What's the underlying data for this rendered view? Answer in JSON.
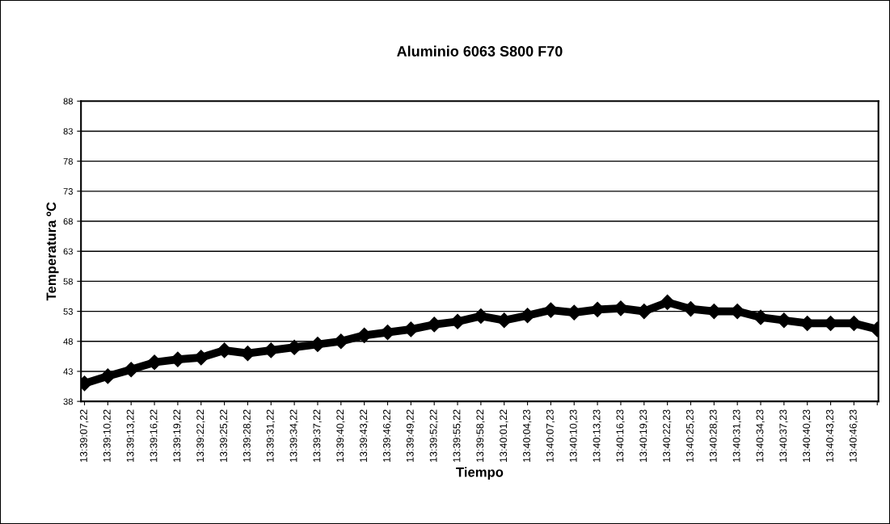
{
  "chart_data": {
    "type": "line",
    "title": "Aluminio 6063 S800 F70",
    "xlabel": "Tiempo",
    "ylabel": "Temperatura ºC",
    "categories": [
      "13:39:07,22",
      "13:39:10,22",
      "13:39:13,22",
      "13:39:16,22",
      "13:39:19,22",
      "13:39:22,22",
      "13:39:25,22",
      "13:39:28,22",
      "13:39:31,22",
      "13:39:34,22",
      "13:39:37,22",
      "13:39:40,22",
      "13:39:43,22",
      "13:39:46,22",
      "13:39:49,22",
      "13:39:52,22",
      "13:39:55,22",
      "13:39:58,22",
      "13:40:01,22",
      "13:40:04,23",
      "13:40:07,23",
      "13:40:10,23",
      "13:40:13,23",
      "13:40:16,23",
      "13:40:19,23",
      "13:40:22,23",
      "13:40:25,23",
      "13:40:28,23",
      "13:40:31,23",
      "13:40:34,23",
      "13:40:37,23",
      "13:40:40,23",
      "13:40:43,23",
      "13:40:46,23",
      null
    ],
    "series": [
      {
        "color": "#000000",
        "values": [
          41.0,
          42.2,
          43.3,
          44.5,
          45.0,
          45.3,
          46.5,
          46.0,
          46.5,
          47.0,
          47.5,
          48.0,
          49.0,
          49.5,
          50.0,
          50.8,
          51.3,
          52.2,
          51.5,
          52.3,
          53.2,
          52.8,
          53.3,
          53.5,
          53.0,
          54.5,
          53.4,
          53.0,
          53.0,
          52.0,
          51.5,
          51.0,
          51.0,
          51.0,
          50.0
        ]
      }
    ],
    "ylim": [
      38,
      88
    ],
    "yticks": [
      38,
      43,
      48,
      53,
      58,
      63,
      68,
      73,
      78,
      83,
      88
    ],
    "grid": "y",
    "marker": "diamond",
    "line_style": "solid"
  }
}
